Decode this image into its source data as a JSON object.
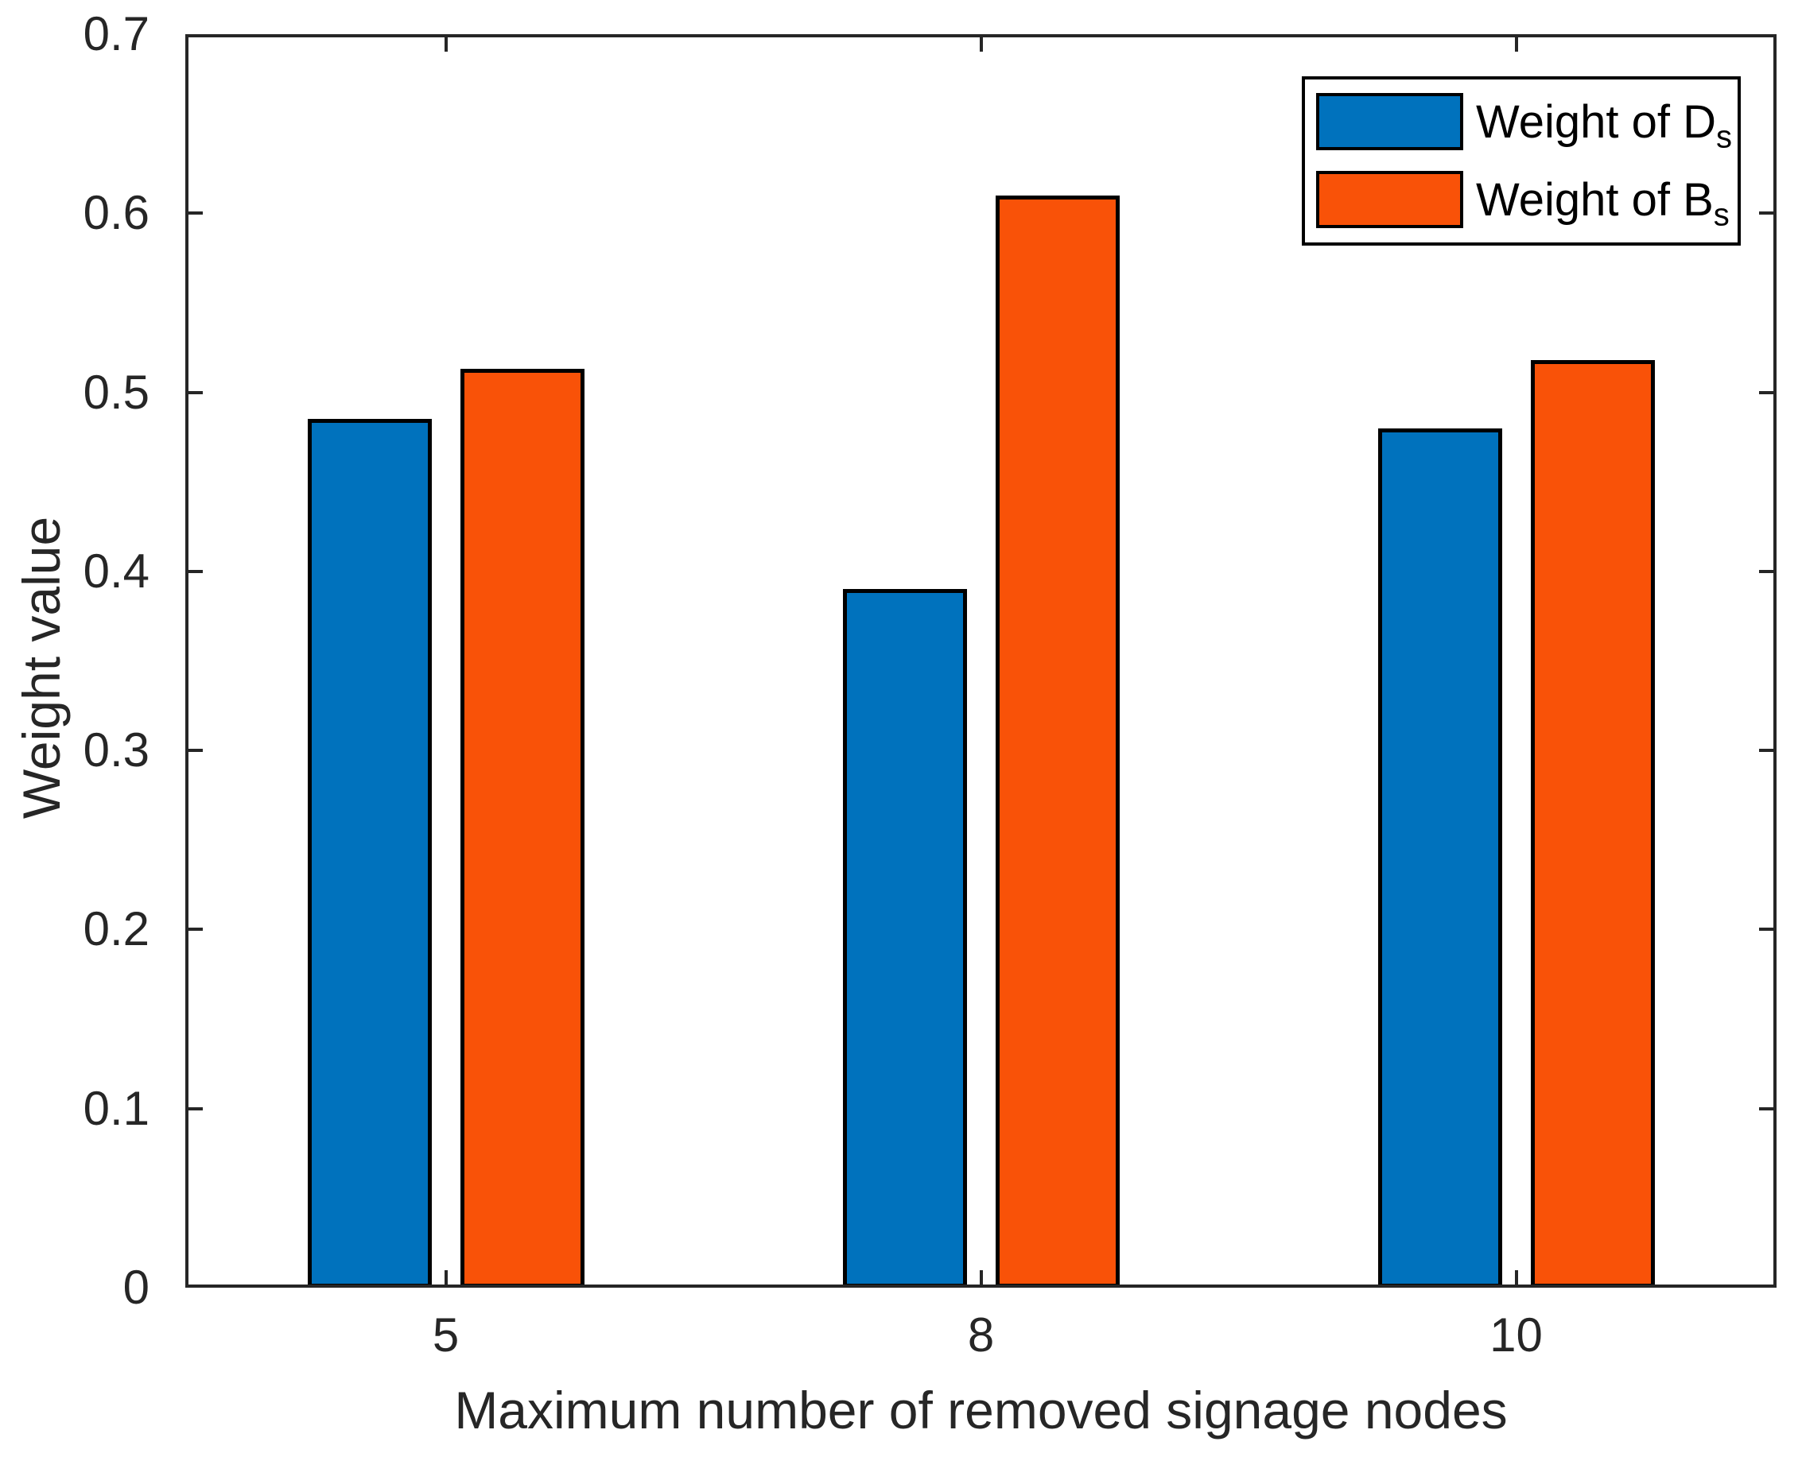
{
  "chart_data": {
    "type": "bar",
    "categories": [
      "5",
      "8",
      "10"
    ],
    "series": [
      {
        "name": "Weight of D_s",
        "label": "Weight of D",
        "label_sub": "s",
        "color": "#0072BD",
        "values": [
          0.485,
          0.39,
          0.48
        ]
      },
      {
        "name": "Weight of B_s",
        "label": "Weight of B",
        "label_sub": "s",
        "color": "#F95208",
        "values": [
          0.513,
          0.61,
          0.518
        ]
      }
    ],
    "xlabel": "Maximum number of removed signage nodes",
    "ylabel": "Weight value",
    "ylim": [
      0,
      0.7
    ],
    "ytick_labels": [
      "0",
      "0.1",
      "0.2",
      "0.3",
      "0.4",
      "0.5",
      "0.6",
      "0.7"
    ],
    "grid": false,
    "legend_position": "top-right",
    "axis_color": "#262626",
    "bar_edge_color": "#000000"
  }
}
